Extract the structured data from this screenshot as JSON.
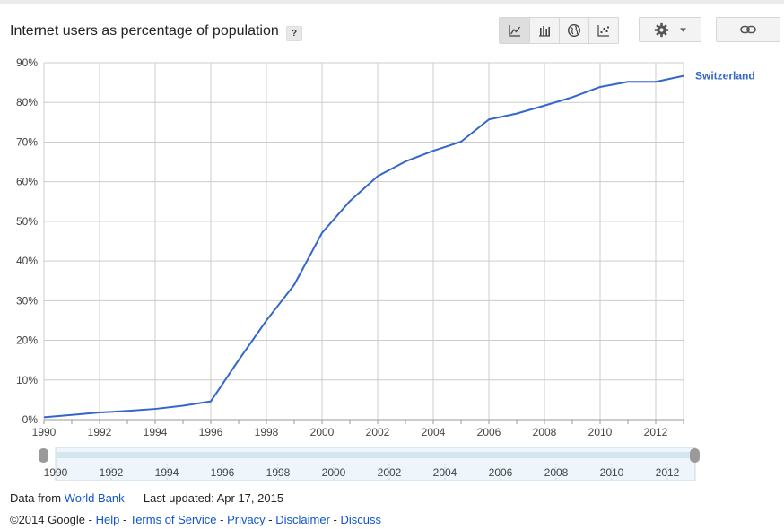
{
  "header": {
    "title": "Internet users as percentage of population",
    "help_label": "?",
    "toolbar_icons": [
      "line-chart-icon",
      "bar-chart-icon",
      "globe-icon",
      "scatter-icon"
    ],
    "settings_icon": "gear-icon",
    "link_icon": "link-icon"
  },
  "colors": {
    "series": "#3366cc",
    "grid": "#cccccc",
    "link": "#1155cc"
  },
  "chart_data": {
    "type": "line",
    "title": "Internet users as percentage of population",
    "x": [
      1990,
      1991,
      1992,
      1993,
      1994,
      1995,
      1996,
      1997,
      1998,
      1999,
      2000,
      2001,
      2002,
      2003,
      2004,
      2005,
      2006,
      2007,
      2008,
      2009,
      2010,
      2011,
      2012,
      2013
    ],
    "series": [
      {
        "name": "Switzerland",
        "values": [
          0.6,
          1.2,
          1.8,
          2.2,
          2.7,
          3.5,
          4.6,
          15.0,
          25.0,
          34.0,
          47.1,
          55.1,
          61.4,
          65.1,
          67.8,
          70.1,
          75.7,
          77.2,
          79.2,
          81.3,
          83.9,
          85.2,
          85.2,
          86.7
        ]
      }
    ],
    "ylim": [
      0,
      90
    ],
    "yticks": [
      "0%",
      "10%",
      "20%",
      "30%",
      "40%",
      "50%",
      "60%",
      "70%",
      "80%",
      "90%"
    ],
    "xticks": [
      "1990",
      "1992",
      "1994",
      "1996",
      "1998",
      "2000",
      "2002",
      "2004",
      "2006",
      "2008",
      "2010",
      "2012"
    ],
    "grid": true,
    "legend": "right"
  },
  "slider": {
    "ticks": [
      "1990",
      "1992",
      "1994",
      "1996",
      "1998",
      "2000",
      "2002",
      "2004",
      "2006",
      "2008",
      "2010",
      "2012"
    ]
  },
  "footer": {
    "data_from": "Data from",
    "source": "World Bank",
    "last_updated": "Last updated: Apr 17, 2015",
    "copyright": "©2014 Google -",
    "links": [
      "Help",
      "Terms of Service",
      "Privacy",
      "Disclaimer",
      "Discuss"
    ],
    "separator": " - "
  }
}
